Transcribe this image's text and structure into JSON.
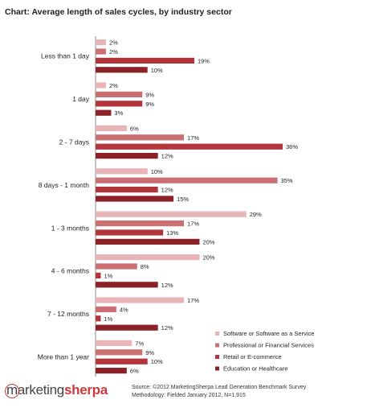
{
  "chart_data": {
    "type": "bar",
    "orientation": "horizontal",
    "title": "Chart: Average length of sales cycles, by industry sector",
    "categories": [
      "Less than 1 day",
      "1 day",
      "2 - 7 days",
      "8 days - 1 month",
      "1 - 3 months",
      "4 - 6 months",
      "7 - 12 months",
      "More than 1 year"
    ],
    "value_suffix": "%",
    "xlim": [
      0,
      40
    ],
    "grid": false,
    "legend_position": "bottom-right",
    "series": [
      {
        "name": "Software or Software as a Service",
        "color": "#e8b4b6",
        "values": [
          2,
          2,
          6,
          10,
          29,
          20,
          17,
          7
        ]
      },
      {
        "name": "Professional or Financial Services",
        "color": "#cc6f73",
        "values": [
          2,
          9,
          17,
          35,
          17,
          8,
          4,
          9
        ]
      },
      {
        "name": "Retail or E-commerce",
        "color": "#b4343c",
        "values": [
          19,
          9,
          36,
          12,
          13,
          1,
          1,
          10
        ]
      },
      {
        "name": "Education or Healthcare",
        "color": "#8c2128",
        "values": [
          10,
          3,
          12,
          15,
          20,
          12,
          12,
          6
        ]
      }
    ]
  },
  "brand": {
    "logo_part1": "marketing",
    "logo_part2": "sherpa"
  },
  "source": {
    "line1": "Source: ©2012 MarketingSherpa Lead Generation Benchmark Survey",
    "line2": "Methodology: Fielded January 2012, N=1,915"
  }
}
